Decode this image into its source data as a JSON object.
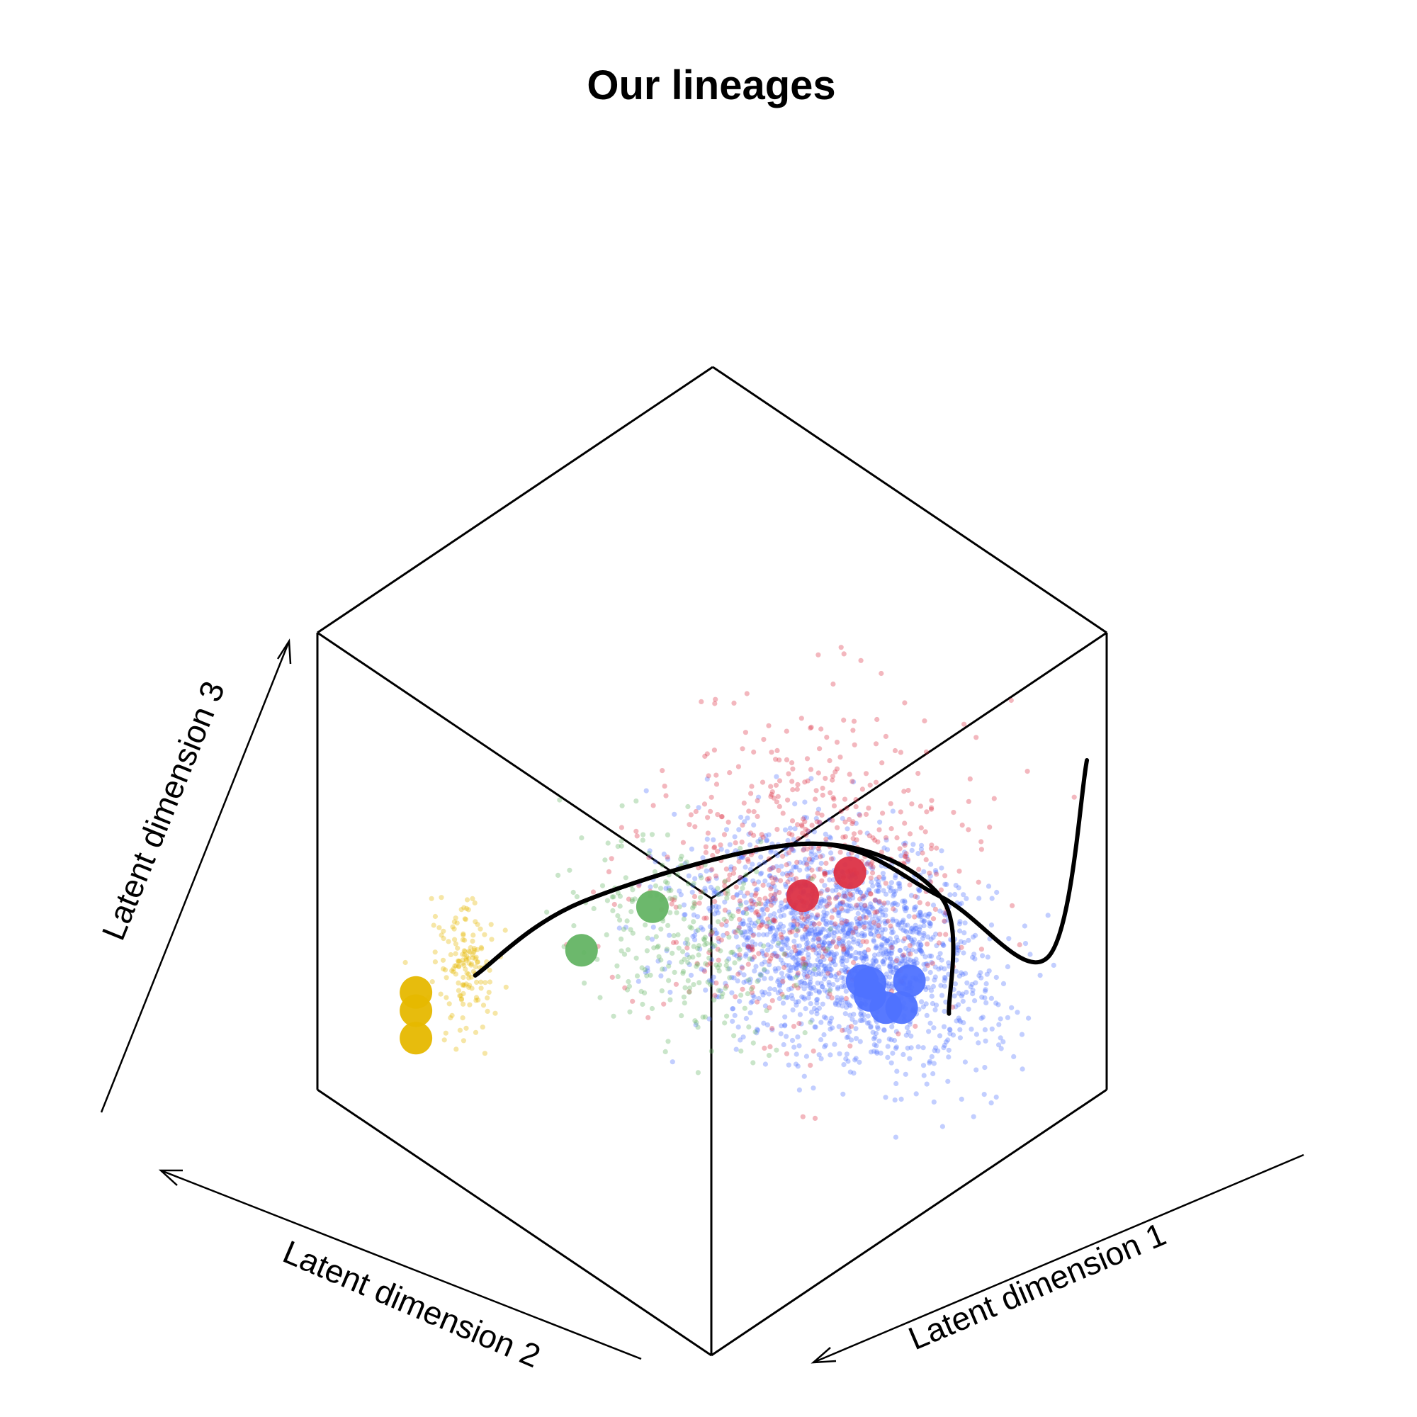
{
  "chart_data": {
    "type": "scatter",
    "title": "Our lineages",
    "axes": {
      "x": {
        "label": "Latent dimension 1",
        "range": [
          0,
          1
        ]
      },
      "y": {
        "label": "Latent dimension 2",
        "range": [
          0,
          1
        ]
      },
      "z": {
        "label": "Latent dimension 3",
        "range": [
          0,
          1
        ]
      }
    },
    "grid": false,
    "legend": "none",
    "colors": {
      "blue": "#4f72ff",
      "red": "#dc3246",
      "green": "#64b464",
      "yellow": "#e6b800",
      "curve": "#000000",
      "box": "#000000"
    },
    "background_clusters": [
      {
        "color_key": "blue",
        "count": 1800,
        "center": [
          0.78,
          0.45,
          0.18
        ],
        "spread": [
          0.18,
          0.25,
          0.1
        ]
      },
      {
        "color_key": "red",
        "count": 620,
        "center": [
          0.55,
          0.3,
          0.55
        ],
        "spread": [
          0.25,
          0.22,
          0.2
        ]
      },
      {
        "color_key": "green",
        "count": 260,
        "center": [
          0.22,
          0.3,
          0.62
        ],
        "spread": [
          0.12,
          0.2,
          0.15
        ]
      },
      {
        "color_key": "yellow",
        "count": 150,
        "center": [
          0.22,
          0.85,
          0.22
        ],
        "spread": [
          0.05,
          0.06,
          0.1
        ]
      }
    ],
    "highlight_points": [
      {
        "color_key": "green",
        "points": [
          [
            0.15,
            0.3,
            0.72
          ],
          [
            0.15,
            0.48,
            0.52
          ]
        ]
      },
      {
        "color_key": "red",
        "points": [
          [
            0.55,
            0.2,
            0.62
          ],
          [
            0.55,
            0.32,
            0.5
          ]
        ]
      },
      {
        "color_key": "yellow",
        "points": [
          [
            0.05,
            0.8,
            0.3
          ],
          [
            0.05,
            0.8,
            0.26
          ],
          [
            0.05,
            0.8,
            0.2
          ]
        ]
      },
      {
        "color_key": "blue",
        "points": [
          [
            0.8,
            0.3,
            0.18
          ],
          [
            0.74,
            0.36,
            0.18
          ],
          [
            0.78,
            0.38,
            0.14
          ],
          [
            0.8,
            0.4,
            0.09
          ],
          [
            0.84,
            0.4,
            0.04
          ],
          [
            0.86,
            0.38,
            0.04
          ]
        ]
      }
    ],
    "curves": [
      {
        "name": "",
        "points": [
          [
            0.2,
            0.8,
            0.25
          ],
          [
            0.18,
            0.5,
            0.6
          ],
          [
            0.4,
            0.15,
            0.8
          ],
          [
            0.68,
            0.1,
            0.55
          ],
          [
            0.9,
            0.3,
            0.05
          ]
        ]
      },
      {
        "name": "",
        "points": [
          [
            0.2,
            0.8,
            0.25
          ],
          [
            0.18,
            0.5,
            0.6
          ],
          [
            0.4,
            0.15,
            0.8
          ],
          [
            0.68,
            0.1,
            0.55
          ],
          [
            0.95,
            0.1,
            0.26
          ],
          [
            0.95,
            0.0,
            0.75
          ]
        ]
      }
    ]
  }
}
